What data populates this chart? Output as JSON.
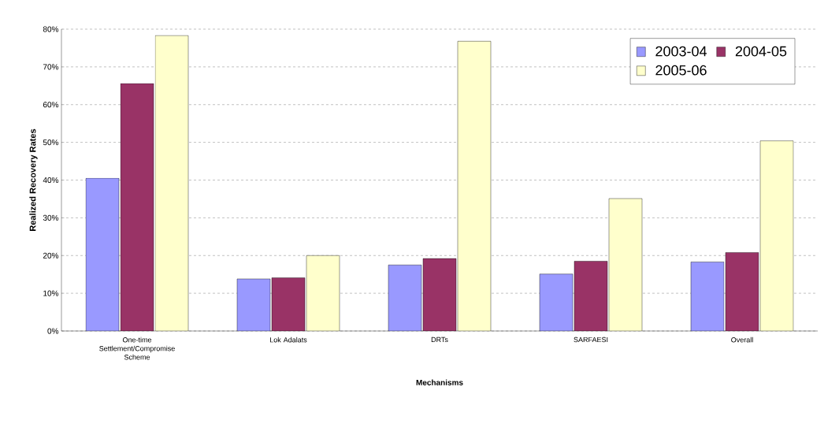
{
  "chart_data": {
    "type": "bar",
    "xlabel": "Mechanisms",
    "ylabel": "Realized Recovery Rates",
    "categories": [
      "One-time Settlement/Compromise Scheme",
      "Lok Adalats",
      "DRTs",
      "SARFAESI",
      "Overall"
    ],
    "series": [
      {
        "name": "2003-04",
        "color": "#9999ff",
        "values": [
          40.5,
          13.8,
          17.5,
          15.1,
          18.3
        ]
      },
      {
        "name": "2004-05",
        "color": "#993366",
        "values": [
          65.6,
          14.1,
          19.2,
          18.5,
          20.8
        ]
      },
      {
        "name": "2005-06",
        "color": "#ffffcc",
        "values": [
          78.3,
          20.0,
          76.8,
          35.1,
          50.4
        ]
      }
    ],
    "ylim": [
      0,
      80
    ],
    "yticks": [
      {
        "value": 0,
        "label": "0%"
      },
      {
        "value": 10,
        "label": "10%"
      },
      {
        "value": 20,
        "label": "20%"
      },
      {
        "value": 30,
        "label": "30%"
      },
      {
        "value": 40,
        "label": "40%"
      },
      {
        "value": 50,
        "label": "50%"
      },
      {
        "value": 60,
        "label": "60%"
      },
      {
        "value": 70,
        "label": "70%"
      },
      {
        "value": 80,
        "label": "80%"
      }
    ],
    "grid": "y",
    "legend": "top right"
  }
}
